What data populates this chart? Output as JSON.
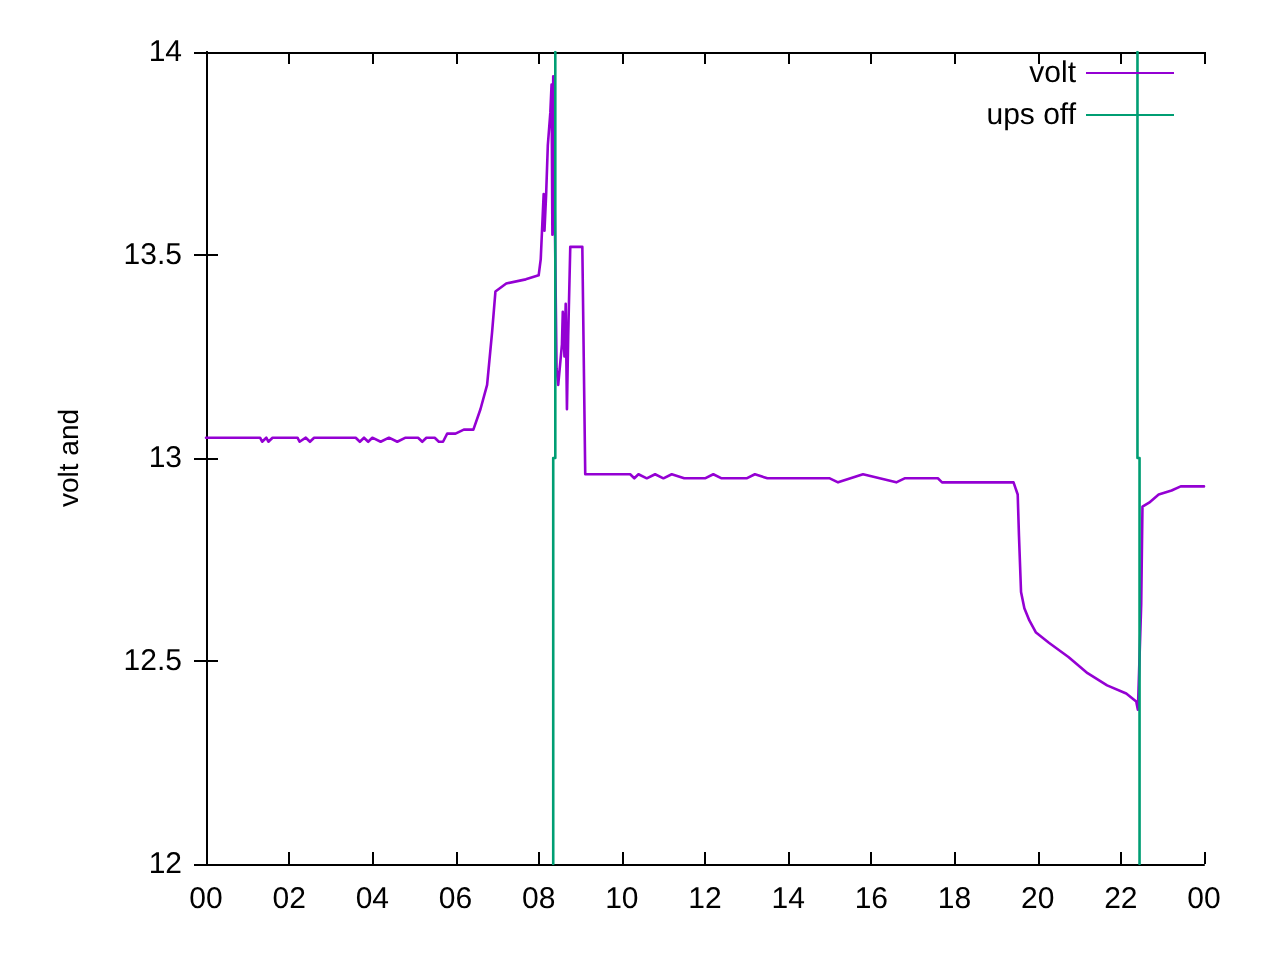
{
  "chart_data": {
    "type": "line",
    "ylabel": "volt and",
    "xlim": [
      0,
      24
    ],
    "ylim": [
      12,
      14
    ],
    "xticks": [
      {
        "value": 0,
        "label": "00"
      },
      {
        "value": 2,
        "label": "02"
      },
      {
        "value": 4,
        "label": "04"
      },
      {
        "value": 6,
        "label": "06"
      },
      {
        "value": 8,
        "label": "08"
      },
      {
        "value": 10,
        "label": "10"
      },
      {
        "value": 12,
        "label": "12"
      },
      {
        "value": 14,
        "label": "14"
      },
      {
        "value": 16,
        "label": "16"
      },
      {
        "value": 18,
        "label": "18"
      },
      {
        "value": 20,
        "label": "20"
      },
      {
        "value": 22,
        "label": "22"
      },
      {
        "value": 24,
        "label": "00"
      }
    ],
    "yticks": [
      12,
      12.5,
      13,
      13.5,
      14
    ],
    "grid": false,
    "legend": "top right",
    "marker": "none",
    "line_style": "solid",
    "series": [
      {
        "name": "volt",
        "color": "#9400d3",
        "x": [
          0,
          1.3,
          1.35,
          1.45,
          1.5,
          1.6,
          2.2,
          2.25,
          2.4,
          2.5,
          2.6,
          3.6,
          3.7,
          3.8,
          3.9,
          4.0,
          4.2,
          4.4,
          4.6,
          4.8,
          5.1,
          5.2,
          5.3,
          5.5,
          5.6,
          5.7,
          5.8,
          6.0,
          6.2,
          6.43,
          6.6,
          6.76,
          6.88,
          6.96,
          7.22,
          7.69,
          8.0,
          8.05,
          8.12,
          8.14,
          8.18,
          8.22,
          8.28,
          8.31,
          8.33,
          8.35,
          8.43,
          8.47,
          8.56,
          8.58,
          8.62,
          8.65,
          8.68,
          8.71,
          8.76,
          9.05,
          9.12,
          10.2,
          10.3,
          10.4,
          10.6,
          10.8,
          11.0,
          11.2,
          11.5,
          12.0,
          12.2,
          12.4,
          13.0,
          13.2,
          13.5,
          15.0,
          15.2,
          15.5,
          15.8,
          16.2,
          16.6,
          16.8,
          17.6,
          17.7,
          19.42,
          19.52,
          19.55,
          19.6,
          19.68,
          19.8,
          19.96,
          20.27,
          20.74,
          21.2,
          21.67,
          22.13,
          22.37,
          22.41,
          22.49,
          22.52,
          22.68,
          22.91,
          23.22,
          23.44,
          24
        ],
        "values": [
          13.05,
          13.05,
          13.04,
          13.05,
          13.04,
          13.05,
          13.05,
          13.04,
          13.05,
          13.04,
          13.05,
          13.05,
          13.04,
          13.05,
          13.04,
          13.05,
          13.04,
          13.05,
          13.04,
          13.05,
          13.05,
          13.04,
          13.05,
          13.05,
          13.04,
          13.04,
          13.06,
          13.06,
          13.07,
          13.07,
          13.12,
          13.18,
          13.31,
          13.41,
          13.43,
          13.44,
          13.45,
          13.49,
          13.65,
          13.56,
          13.65,
          13.77,
          13.85,
          13.92,
          13.55,
          13.94,
          13.22,
          13.18,
          13.28,
          13.36,
          13.25,
          13.38,
          13.12,
          13.3,
          13.52,
          13.52,
          12.96,
          12.96,
          12.95,
          12.96,
          12.95,
          12.96,
          12.95,
          12.96,
          12.95,
          12.95,
          12.96,
          12.95,
          12.95,
          12.96,
          12.95,
          12.95,
          12.94,
          12.95,
          12.96,
          12.95,
          12.94,
          12.95,
          12.95,
          12.94,
          12.94,
          12.91,
          12.81,
          12.67,
          12.63,
          12.6,
          12.57,
          12.545,
          12.51,
          12.47,
          12.44,
          12.42,
          12.4,
          12.38,
          12.64,
          12.88,
          12.89,
          12.91,
          12.92,
          12.93,
          12.93
        ]
      },
      {
        "name": "ups off",
        "color": "#009e73",
        "x": [
          8.35,
          8.35,
          8.4,
          8.4,
          15,
          22.4,
          22.4,
          22.45,
          22.45
        ],
        "values": [
          12,
          13,
          13,
          14,
          null,
          14,
          13,
          13,
          12
        ]
      }
    ]
  }
}
